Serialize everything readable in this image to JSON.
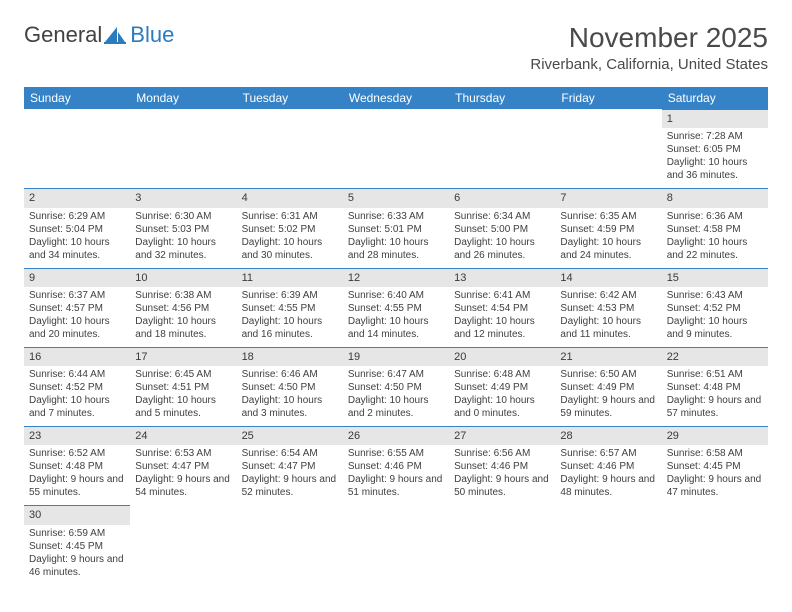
{
  "logo": {
    "word1": "General",
    "word2": "Blue"
  },
  "title": "November 2025",
  "location": "Riverbank, California, United States",
  "colors": {
    "header_bg": "#3583c6",
    "header_text": "#ffffff",
    "daynum_bg": "#e6e6e6",
    "rule": "#3583c6"
  },
  "weekdays": [
    "Sunday",
    "Monday",
    "Tuesday",
    "Wednesday",
    "Thursday",
    "Friday",
    "Saturday"
  ],
  "weeks": [
    [
      null,
      null,
      null,
      null,
      null,
      null,
      {
        "d": "1",
        "sr": "7:28 AM",
        "ss": "6:05 PM",
        "dl": "10 hours and 36 minutes."
      }
    ],
    [
      {
        "d": "2",
        "sr": "6:29 AM",
        "ss": "5:04 PM",
        "dl": "10 hours and 34 minutes."
      },
      {
        "d": "3",
        "sr": "6:30 AM",
        "ss": "5:03 PM",
        "dl": "10 hours and 32 minutes."
      },
      {
        "d": "4",
        "sr": "6:31 AM",
        "ss": "5:02 PM",
        "dl": "10 hours and 30 minutes."
      },
      {
        "d": "5",
        "sr": "6:33 AM",
        "ss": "5:01 PM",
        "dl": "10 hours and 28 minutes."
      },
      {
        "d": "6",
        "sr": "6:34 AM",
        "ss": "5:00 PM",
        "dl": "10 hours and 26 minutes."
      },
      {
        "d": "7",
        "sr": "6:35 AM",
        "ss": "4:59 PM",
        "dl": "10 hours and 24 minutes."
      },
      {
        "d": "8",
        "sr": "6:36 AM",
        "ss": "4:58 PM",
        "dl": "10 hours and 22 minutes."
      }
    ],
    [
      {
        "d": "9",
        "sr": "6:37 AM",
        "ss": "4:57 PM",
        "dl": "10 hours and 20 minutes."
      },
      {
        "d": "10",
        "sr": "6:38 AM",
        "ss": "4:56 PM",
        "dl": "10 hours and 18 minutes."
      },
      {
        "d": "11",
        "sr": "6:39 AM",
        "ss": "4:55 PM",
        "dl": "10 hours and 16 minutes."
      },
      {
        "d": "12",
        "sr": "6:40 AM",
        "ss": "4:55 PM",
        "dl": "10 hours and 14 minutes."
      },
      {
        "d": "13",
        "sr": "6:41 AM",
        "ss": "4:54 PM",
        "dl": "10 hours and 12 minutes."
      },
      {
        "d": "14",
        "sr": "6:42 AM",
        "ss": "4:53 PM",
        "dl": "10 hours and 11 minutes."
      },
      {
        "d": "15",
        "sr": "6:43 AM",
        "ss": "4:52 PM",
        "dl": "10 hours and 9 minutes."
      }
    ],
    [
      {
        "d": "16",
        "sr": "6:44 AM",
        "ss": "4:52 PM",
        "dl": "10 hours and 7 minutes."
      },
      {
        "d": "17",
        "sr": "6:45 AM",
        "ss": "4:51 PM",
        "dl": "10 hours and 5 minutes."
      },
      {
        "d": "18",
        "sr": "6:46 AM",
        "ss": "4:50 PM",
        "dl": "10 hours and 3 minutes."
      },
      {
        "d": "19",
        "sr": "6:47 AM",
        "ss": "4:50 PM",
        "dl": "10 hours and 2 minutes."
      },
      {
        "d": "20",
        "sr": "6:48 AM",
        "ss": "4:49 PM",
        "dl": "10 hours and 0 minutes."
      },
      {
        "d": "21",
        "sr": "6:50 AM",
        "ss": "4:49 PM",
        "dl": "9 hours and 59 minutes."
      },
      {
        "d": "22",
        "sr": "6:51 AM",
        "ss": "4:48 PM",
        "dl": "9 hours and 57 minutes."
      }
    ],
    [
      {
        "d": "23",
        "sr": "6:52 AM",
        "ss": "4:48 PM",
        "dl": "9 hours and 55 minutes."
      },
      {
        "d": "24",
        "sr": "6:53 AM",
        "ss": "4:47 PM",
        "dl": "9 hours and 54 minutes."
      },
      {
        "d": "25",
        "sr": "6:54 AM",
        "ss": "4:47 PM",
        "dl": "9 hours and 52 minutes."
      },
      {
        "d": "26",
        "sr": "6:55 AM",
        "ss": "4:46 PM",
        "dl": "9 hours and 51 minutes."
      },
      {
        "d": "27",
        "sr": "6:56 AM",
        "ss": "4:46 PM",
        "dl": "9 hours and 50 minutes."
      },
      {
        "d": "28",
        "sr": "6:57 AM",
        "ss": "4:46 PM",
        "dl": "9 hours and 48 minutes."
      },
      {
        "d": "29",
        "sr": "6:58 AM",
        "ss": "4:45 PM",
        "dl": "9 hours and 47 minutes."
      }
    ],
    [
      {
        "d": "30",
        "sr": "6:59 AM",
        "ss": "4:45 PM",
        "dl": "9 hours and 46 minutes."
      },
      null,
      null,
      null,
      null,
      null,
      null
    ]
  ],
  "labels": {
    "sunrise": "Sunrise:",
    "sunset": "Sunset:",
    "daylight": "Daylight:"
  }
}
